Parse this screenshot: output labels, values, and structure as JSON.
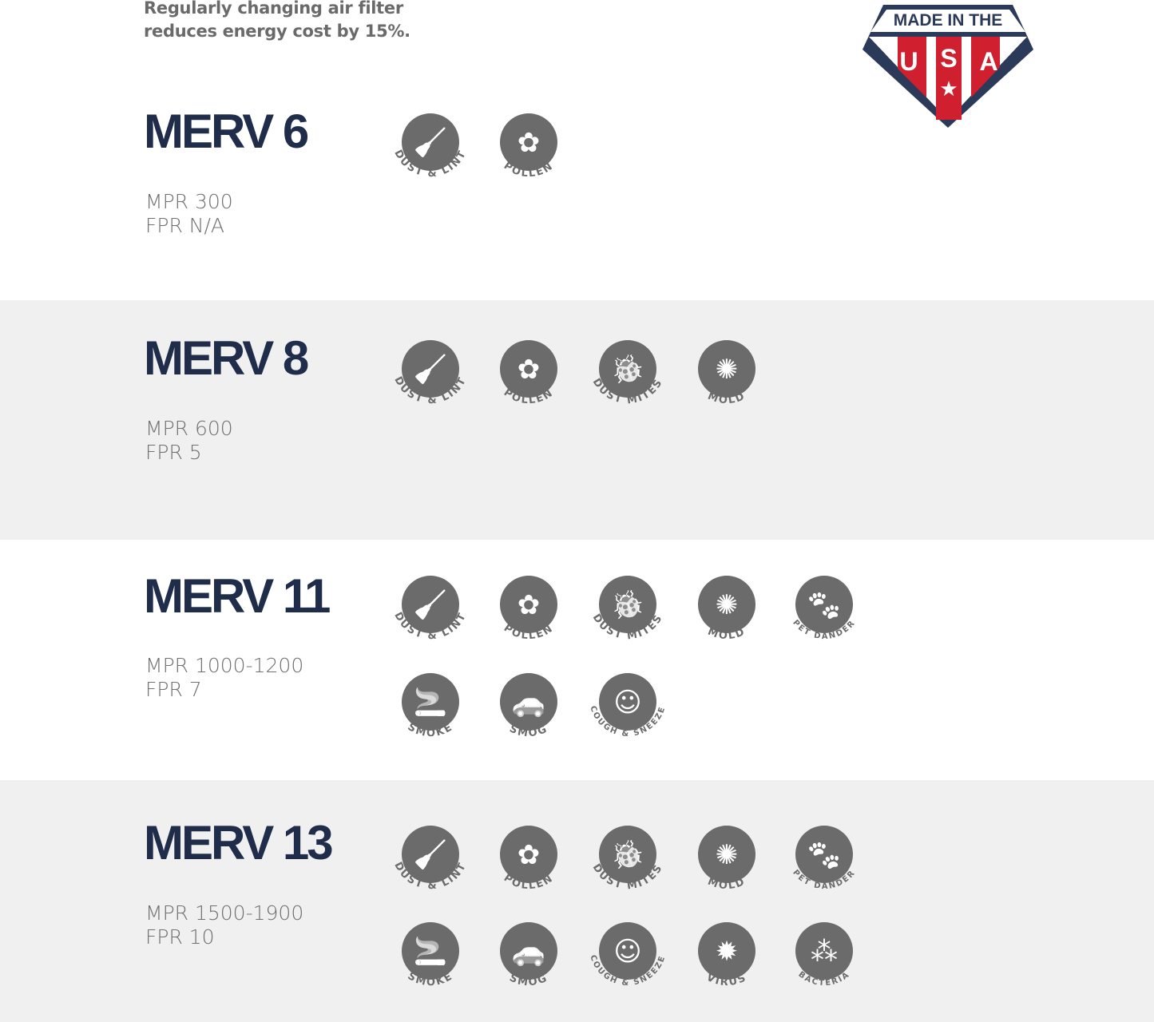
{
  "tagline": [
    "Regularly changing air filter",
    "reduces energy cost by 15%."
  ],
  "badge": {
    "top": "MADE IN THE",
    "letters": [
      "U",
      "S",
      "A"
    ],
    "colors": {
      "navy": "#2b3a58",
      "red": "#d0202f"
    }
  },
  "colors": {
    "title": "#1f2d4a",
    "icon": "#6b6b6b",
    "gray_band": "#f0f0f0"
  },
  "labels": {
    "dust": "DUST & LINT",
    "pollen": "POLLEN",
    "mites": "DUST  MITES",
    "mold": "MOLD",
    "pet": "PET DANDER",
    "smoke": "SMOKE",
    "smog": "SMOG",
    "cough": "COUGH & SNEEZE",
    "virus": "VIRUS",
    "bacteria": "BACTERIA"
  },
  "sections": [
    {
      "title": "MERV 6",
      "mpr": "MPR 300",
      "fpr": "FPR N/A",
      "rows": [
        [
          "dust",
          "pollen"
        ]
      ]
    },
    {
      "title": "MERV 8",
      "mpr": "MPR 600",
      "fpr": "FPR 5",
      "rows": [
        [
          "dust",
          "pollen",
          "mites",
          "mold"
        ]
      ]
    },
    {
      "title": "MERV 11",
      "mpr": "MPR 1000-1200",
      "fpr": "FPR 7",
      "rows": [
        [
          "dust",
          "pollen",
          "mites",
          "mold",
          "pet"
        ],
        [
          "smoke",
          "smog",
          "cough"
        ]
      ]
    },
    {
      "title": "MERV 13",
      "mpr": "MPR 1500-1900",
      "fpr": "FPR 10",
      "rows": [
        [
          "dust",
          "pollen",
          "mites",
          "mold",
          "pet"
        ],
        [
          "smoke",
          "smog",
          "cough",
          "virus",
          "bacteria"
        ]
      ]
    }
  ]
}
